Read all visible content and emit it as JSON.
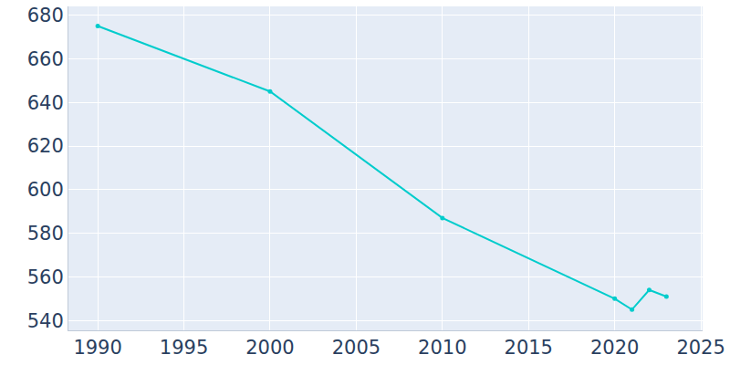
{
  "chart_data": {
    "type": "line",
    "x": [
      1990,
      2000,
      2010,
      2020,
      2021,
      2022,
      2023
    ],
    "values": [
      675,
      645,
      587,
      550,
      545,
      554,
      551
    ],
    "color": "#00cccc",
    "marker": "circle",
    "xlim": [
      1988.3,
      2025.1
    ],
    "xticks": [
      1990,
      1995,
      2000,
      2005,
      2010,
      2015,
      2020,
      2025
    ],
    "ylim": [
      535.5,
      684
    ],
    "yticks": [
      540,
      560,
      580,
      600,
      620,
      640,
      660,
      680
    ],
    "grid": true
  }
}
